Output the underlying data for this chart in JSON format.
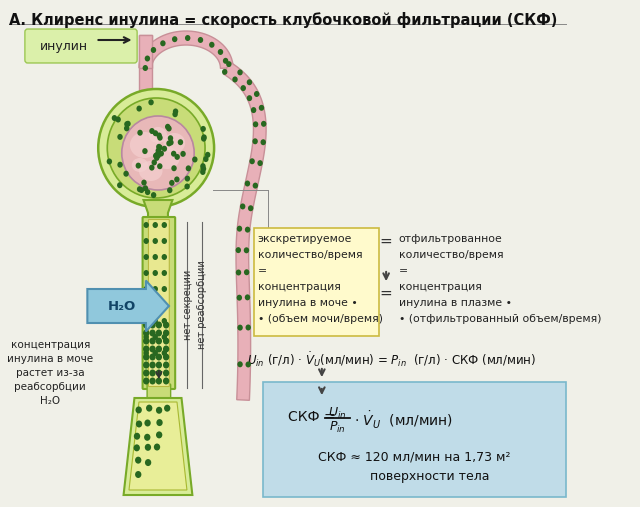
{
  "title": "А. Клиренс инулина = скорость клубочковой фильтрации (СКФ)",
  "title_fontsize": 10.5,
  "bg_color": "#f0f0e8",
  "inulin_label": "инулин",
  "yellow_box_color": "#fffacc",
  "yellow_box_text": "экскретируемое\nколичество/время\n=\nконцентрация\nинулина в моче •\n• (объем мочи/время)",
  "right_text": "отфильтрованное\nколичество/время\n=\nконцентрация\nинулина в плазме •\n• (отфильтрованный объем/время)",
  "blue_box_color": "#c0dce8",
  "left_label": "концентрация\nинулина в моче\nрастет из-за\nреабсорбции\nH₂O",
  "vertical_label": "нет секреции\nнет реабсорбции",
  "h2o_label": "H₂O",
  "tubule_green": "#c8dc78",
  "tubule_border": "#78aa28",
  "capsule_light": "#d8ec98",
  "glom_pink": "#e8b8b8",
  "glom_pink2": "#f0c8c8",
  "capillary_pink": "#e8b0b8",
  "capillary_border": "#c89098",
  "dot_green": "#286820",
  "lumen_yellow": "#e8e890",
  "water_blue": "#90c8dc",
  "dot_size": 3.0
}
